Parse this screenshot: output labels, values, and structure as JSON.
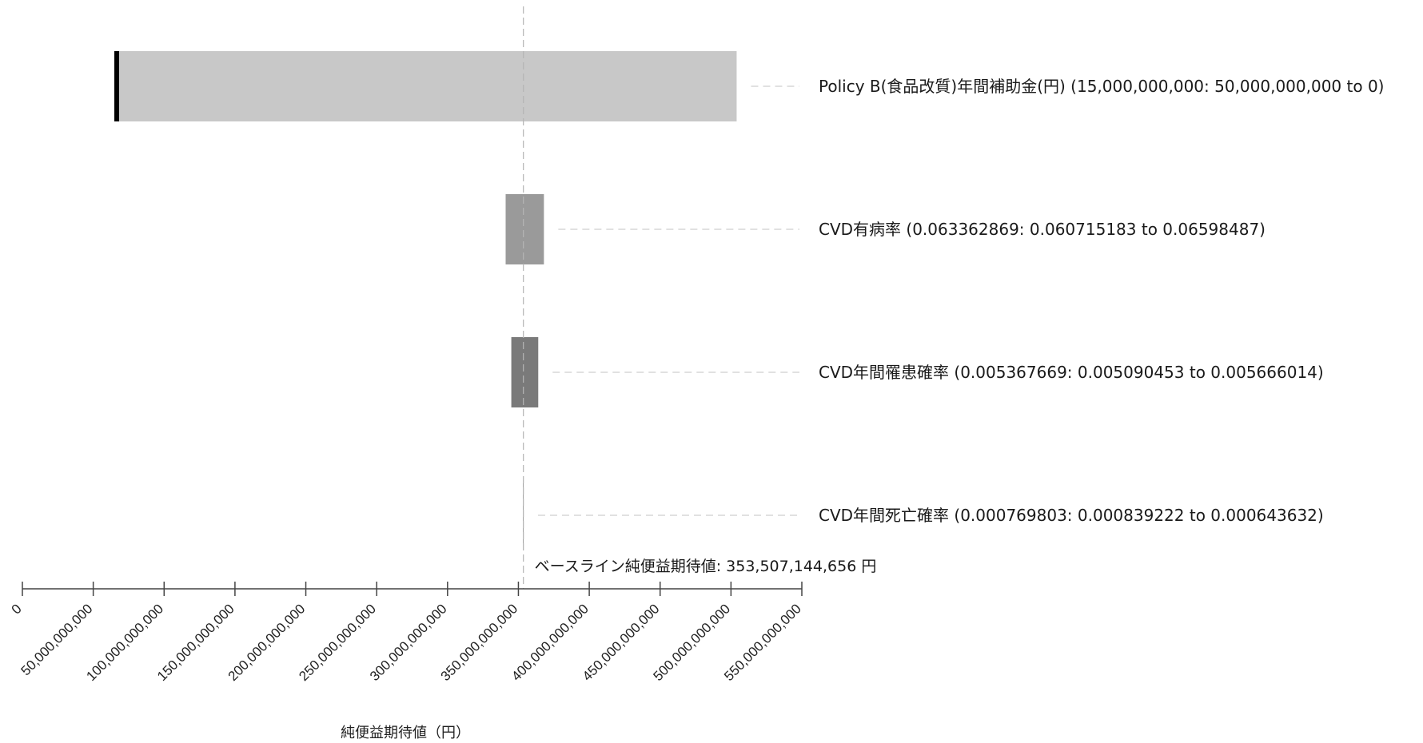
{
  "chart_data": {
    "type": "bar",
    "subtype": "tornado",
    "title": "",
    "xlabel": "純便益期待値（円）",
    "ylabel": "",
    "xlim": [
      0,
      550000000000
    ],
    "x_ticks": [
      0,
      50000000000,
      100000000000,
      150000000000,
      200000000000,
      250000000000,
      300000000000,
      350000000000,
      400000000000,
      450000000000,
      500000000000,
      550000000000
    ],
    "x_tick_labels": [
      "0",
      "50,000,000,000",
      "100,000,000,000",
      "150,000,000,000",
      "200,000,000,000",
      "250,000,000,000",
      "300,000,000,000",
      "350,000,000,000",
      "400,000,000,000",
      "450,000,000,000",
      "500,000,000,000",
      "550,000,000,000"
    ],
    "baseline": {
      "value": 353507144656,
      "label": "ベースライン純便益期待値: 353,507,144,656 円"
    },
    "grid": false,
    "legend": "none",
    "bars": [
      {
        "label": "Policy B(食品改質)年間補助金(円) (15,000,000,000: 50,000,000,000 to 0)",
        "low": 66000000000,
        "high": 504000000000,
        "color": "#c8c8c8"
      },
      {
        "label": "CVD有病率 (0.063362869: 0.060715183 to 0.06598487)",
        "low": 341000000000,
        "high": 368000000000,
        "color": "#9a9a9a"
      },
      {
        "label": "CVD年間罹患確率 (0.005367669: 0.005090453 to 0.005666014)",
        "low": 345000000000,
        "high": 364000000000,
        "color": "#7a7a7a"
      },
      {
        "label": "CVD年間死亡確率 (0.000769803: 0.000839222 to 0.000643632)",
        "low": 353300000000,
        "high": 353700000000,
        "color": "#7a7a7a"
      }
    ]
  }
}
